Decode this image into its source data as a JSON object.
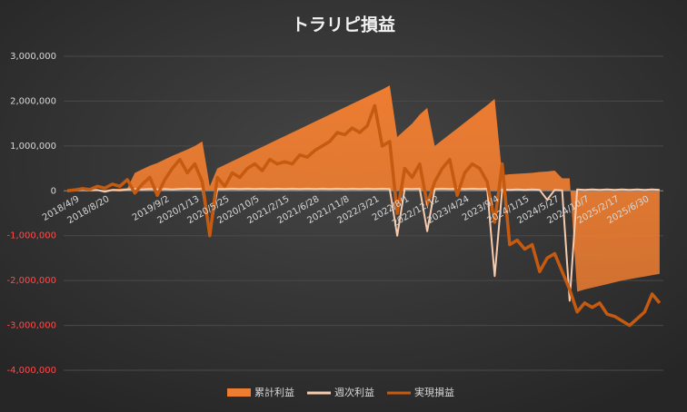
{
  "chart_data": {
    "type": "area-line",
    "title": "トラリピ損益",
    "categories": [
      null,
      "2018/4/9",
      null,
      null,
      null,
      "2018/8/20",
      null,
      null,
      null,
      null,
      null,
      null,
      null,
      "2019/9/2",
      null,
      null,
      null,
      "2020/1/13",
      null,
      null,
      null,
      "2020/5/25",
      null,
      null,
      null,
      "2020/10/5",
      null,
      null,
      null,
      "2021/2/15",
      null,
      null,
      null,
      "2021/6/28",
      null,
      null,
      null,
      "2021/11/8",
      null,
      null,
      null,
      "2022/3/21",
      null,
      null,
      null,
      "2022/8/1",
      null,
      null,
      null,
      "2022/12/12",
      null,
      null,
      null,
      "2023/4/24",
      null,
      null,
      null,
      "2023/9/4",
      null,
      null,
      null,
      "2024/1/15",
      null,
      null,
      null,
      "2024/5/27",
      null,
      null,
      null,
      "2024/10/7",
      null,
      null,
      null,
      "2025/2/17",
      null,
      null,
      null,
      "2025/6/30",
      null,
      null
    ],
    "series": [
      {
        "name": "累計利益",
        "kind": "area",
        "color": "#ed7d31",
        "values": [
          0,
          0,
          10000,
          20000,
          30000,
          20000,
          40000,
          50000,
          60000,
          400000,
          480000,
          560000,
          620000,
          700000,
          780000,
          850000,
          920000,
          1000000,
          1100000,
          100000,
          500000,
          580000,
          660000,
          740000,
          820000,
          900000,
          980000,
          1060000,
          1140000,
          1220000,
          1300000,
          1380000,
          1460000,
          1540000,
          1620000,
          1700000,
          1780000,
          1860000,
          1940000,
          2020000,
          2100000,
          2180000,
          2260000,
          2350000,
          1200000,
          1350000,
          1500000,
          1700000,
          1850000,
          1000000,
          1130000,
          1260000,
          1390000,
          1520000,
          1650000,
          1780000,
          1910000,
          2050000,
          350000,
          370000,
          380000,
          390000,
          400000,
          420000,
          430000,
          450000,
          280000,
          280000,
          -2250000,
          -2200000,
          -2160000,
          -2120000,
          -2080000,
          -2040000,
          -2000000,
          -1970000,
          -1940000,
          -1910000,
          -1880000,
          -1850000
        ]
      },
      {
        "name": "週次利益",
        "kind": "line",
        "color": "#f8cbad",
        "values": [
          0,
          10000,
          20000,
          10000,
          20000,
          -20000,
          20000,
          10000,
          30000,
          40000,
          30000,
          40000,
          30000,
          40000,
          30000,
          40000,
          50000,
          40000,
          50000,
          -1000000,
          40000,
          40000,
          50000,
          40000,
          50000,
          40000,
          50000,
          40000,
          50000,
          40000,
          50000,
          40000,
          50000,
          40000,
          50000,
          40000,
          50000,
          40000,
          50000,
          40000,
          50000,
          40000,
          50000,
          40000,
          -1000000,
          50000,
          40000,
          50000,
          -900000,
          40000,
          50000,
          40000,
          50000,
          40000,
          50000,
          40000,
          50000,
          -1900000,
          30000,
          20000,
          30000,
          20000,
          30000,
          20000,
          -200000,
          20000,
          10000,
          -2450000,
          30000,
          20000,
          30000,
          20000,
          30000,
          20000,
          30000,
          20000,
          30000,
          20000,
          30000,
          20000
        ]
      },
      {
        "name": "実現損益",
        "kind": "line",
        "color": "#c55a11",
        "values": [
          0,
          20000,
          50000,
          30000,
          100000,
          60000,
          150000,
          100000,
          250000,
          -50000,
          150000,
          300000,
          -100000,
          250000,
          500000,
          700000,
          400000,
          600000,
          200000,
          -1000000,
          300000,
          100000,
          400000,
          300000,
          500000,
          600000,
          450000,
          700000,
          600000,
          650000,
          600000,
          800000,
          750000,
          900000,
          1000000,
          1100000,
          1300000,
          1250000,
          1400000,
          1300000,
          1450000,
          1900000,
          1000000,
          1100000,
          -500000,
          500000,
          300000,
          600000,
          -300000,
          200000,
          500000,
          700000,
          -100000,
          400000,
          600000,
          500000,
          200000,
          -700000,
          600000,
          -1200000,
          -1100000,
          -1300000,
          -1200000,
          -1800000,
          -1500000,
          -1400000,
          -1800000,
          -2200000,
          -2700000,
          -2500000,
          -2600000,
          -2500000,
          -2750000,
          -2800000,
          -2900000,
          -3000000,
          -2850000,
          -2700000,
          -2300000,
          -2500000
        ]
      }
    ],
    "ylim": [
      -4000000,
      3000000
    ],
    "yticks": [
      {
        "value": -4000000,
        "label": "-4,000,000"
      },
      {
        "value": -3000000,
        "label": "-3,000,000"
      },
      {
        "value": -2000000,
        "label": "-2,000,000"
      },
      {
        "value": -1000000,
        "label": "-1,000,000"
      },
      0,
      {
        "value": 1000000,
        "label": "1,000,000"
      },
      {
        "value": 2000000,
        "label": "2,000,000"
      },
      {
        "value": 3000000,
        "label": "3,000,000"
      }
    ],
    "grid": true,
    "legend": "bottom"
  }
}
